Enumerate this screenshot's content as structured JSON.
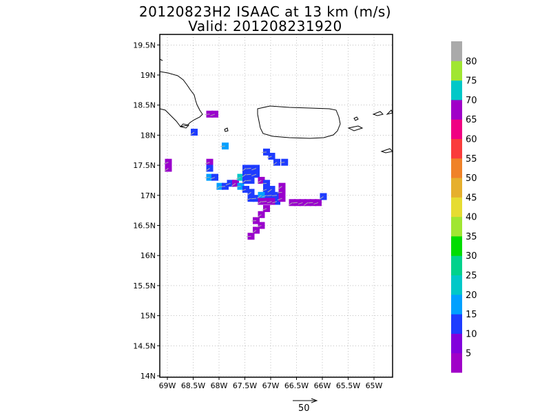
{
  "header": {
    "title_line1": "20120823H2 ISAAC at 13 km (m/s)",
    "title_line2": "Valid: 201208231920"
  },
  "map": {
    "lon_range": [
      -69.2,
      -64.7
    ],
    "lat_range": [
      13.98,
      19.6
    ],
    "lon_ticks": [
      {
        "v": -69.0,
        "label": "69W"
      },
      {
        "v": -68.5,
        "label": "68.5W"
      },
      {
        "v": -68.0,
        "label": "68W"
      },
      {
        "v": -67.5,
        "label": "67.5W"
      },
      {
        "v": -67.0,
        "label": "67W"
      },
      {
        "v": -66.5,
        "label": "66.5W"
      },
      {
        "v": -66.0,
        "label": "66W"
      },
      {
        "v": -65.5,
        "label": "65.5W"
      },
      {
        "v": -65.0,
        "label": "65W"
      }
    ],
    "lat_ticks": [
      {
        "v": 19.5,
        "label": "19.5N"
      },
      {
        "v": 19.0,
        "label": "19N"
      },
      {
        "v": 18.5,
        "label": "18.5N"
      },
      {
        "v": 18.0,
        "label": "18N"
      },
      {
        "v": 17.5,
        "label": "17.5N"
      },
      {
        "v": 17.0,
        "label": "17N"
      },
      {
        "v": 16.5,
        "label": "16.5N"
      },
      {
        "v": 16.0,
        "label": "16N"
      },
      {
        "v": 15.5,
        "label": "15.5N"
      },
      {
        "v": 15.0,
        "label": "15N"
      },
      {
        "v": 14.5,
        "label": "14.5N"
      },
      {
        "v": 14.0,
        "label": "14N"
      }
    ],
    "grid": true,
    "coastline_color": "#000000",
    "cells": [
      {
        "lon": -68.98,
        "lat": 17.55,
        "c": "#9a00cc"
      },
      {
        "lon": -68.98,
        "lat": 17.45,
        "c": "#9a00cc"
      },
      {
        "lon": -68.18,
        "lat": 18.35,
        "c": "#9a00cc"
      },
      {
        "lon": -68.08,
        "lat": 18.35,
        "c": "#9a00cc"
      },
      {
        "lon": -68.48,
        "lat": 18.05,
        "c": "#1e3cff"
      },
      {
        "lon": -67.88,
        "lat": 17.82,
        "c": "#00a0ff"
      },
      {
        "lon": -68.18,
        "lat": 17.55,
        "c": "#9a00cc"
      },
      {
        "lon": -68.18,
        "lat": 17.45,
        "c": "#1e3cff"
      },
      {
        "lon": -68.18,
        "lat": 17.3,
        "c": "#00a0ff"
      },
      {
        "lon": -68.08,
        "lat": 17.3,
        "c": "#1e3cff"
      },
      {
        "lon": -67.98,
        "lat": 17.15,
        "c": "#00a0ff"
      },
      {
        "lon": -67.88,
        "lat": 17.15,
        "c": "#1e3cff"
      },
      {
        "lon": -67.78,
        "lat": 17.2,
        "c": "#1e3cff"
      },
      {
        "lon": -67.68,
        "lat": 17.2,
        "c": "#9a00cc"
      },
      {
        "lon": -67.58,
        "lat": 17.15,
        "c": "#00a0ff"
      },
      {
        "lon": -67.58,
        "lat": 17.3,
        "c": "#00c8c8"
      },
      {
        "lon": -67.48,
        "lat": 17.45,
        "c": "#1e3cff"
      },
      {
        "lon": -67.38,
        "lat": 17.45,
        "c": "#1e3cff"
      },
      {
        "lon": -67.28,
        "lat": 17.45,
        "c": "#1e3cff"
      },
      {
        "lon": -67.48,
        "lat": 17.35,
        "c": "#1e3cff"
      },
      {
        "lon": -67.38,
        "lat": 17.35,
        "c": "#1e3cff"
      },
      {
        "lon": -67.28,
        "lat": 17.35,
        "c": "#1e3cff"
      },
      {
        "lon": -67.48,
        "lat": 17.25,
        "c": "#1e3cff"
      },
      {
        "lon": -67.38,
        "lat": 17.25,
        "c": "#1e3cff"
      },
      {
        "lon": -67.48,
        "lat": 17.1,
        "c": "#1e3cff"
      },
      {
        "lon": -67.38,
        "lat": 17.05,
        "c": "#1e3cff"
      },
      {
        "lon": -67.28,
        "lat": 16.95,
        "c": "#1e3cff"
      },
      {
        "lon": -67.38,
        "lat": 16.95,
        "c": "#1e3cff"
      },
      {
        "lon": -67.18,
        "lat": 17.25,
        "c": "#9a00cc"
      },
      {
        "lon": -67.08,
        "lat": 17.2,
        "c": "#1e3cff"
      },
      {
        "lon": -67.08,
        "lat": 17.1,
        "c": "#1e3cff"
      },
      {
        "lon": -66.98,
        "lat": 17.1,
        "c": "#1e3cff"
      },
      {
        "lon": -66.98,
        "lat": 17.0,
        "c": "#1e3cff"
      },
      {
        "lon": -67.08,
        "lat": 17.0,
        "c": "#1e3cff"
      },
      {
        "lon": -67.18,
        "lat": 17.0,
        "c": "#00a0ff"
      },
      {
        "lon": -66.88,
        "lat": 17.0,
        "c": "#1e3cff"
      },
      {
        "lon": -66.88,
        "lat": 16.9,
        "c": "#1e3cff"
      },
      {
        "lon": -67.18,
        "lat": 16.9,
        "c": "#9a00cc"
      },
      {
        "lon": -67.08,
        "lat": 16.9,
        "c": "#9a00cc"
      },
      {
        "lon": -66.98,
        "lat": 16.9,
        "c": "#9a00cc"
      },
      {
        "lon": -66.78,
        "lat": 17.15,
        "c": "#9a00cc"
      },
      {
        "lon": -66.78,
        "lat": 17.05,
        "c": "#9a00cc"
      },
      {
        "lon": -66.78,
        "lat": 16.95,
        "c": "#9a00cc"
      },
      {
        "lon": -66.58,
        "lat": 16.88,
        "c": "#9a00cc"
      },
      {
        "lon": -66.48,
        "lat": 16.88,
        "c": "#9a00cc"
      },
      {
        "lon": -66.38,
        "lat": 16.88,
        "c": "#9a00cc"
      },
      {
        "lon": -66.28,
        "lat": 16.88,
        "c": "#9a00cc"
      },
      {
        "lon": -66.18,
        "lat": 16.88,
        "c": "#9a00cc"
      },
      {
        "lon": -66.08,
        "lat": 16.88,
        "c": "#9a00cc"
      },
      {
        "lon": -65.98,
        "lat": 16.98,
        "c": "#1e3cff"
      },
      {
        "lon": -67.08,
        "lat": 17.72,
        "c": "#1e3cff"
      },
      {
        "lon": -66.98,
        "lat": 17.65,
        "c": "#1e3cff"
      },
      {
        "lon": -66.88,
        "lat": 17.55,
        "c": "#1e3cff"
      },
      {
        "lon": -66.73,
        "lat": 17.55,
        "c": "#1e3cff"
      },
      {
        "lon": -67.08,
        "lat": 16.78,
        "c": "#9a00cc"
      },
      {
        "lon": -67.18,
        "lat": 16.68,
        "c": "#9a00cc"
      },
      {
        "lon": -67.28,
        "lat": 16.58,
        "c": "#9a00cc"
      },
      {
        "lon": -67.18,
        "lat": 16.5,
        "c": "#9a00cc"
      },
      {
        "lon": -67.28,
        "lat": 16.42,
        "c": "#9a00cc"
      },
      {
        "lon": -67.38,
        "lat": 16.32,
        "c": "#9a00cc"
      }
    ]
  },
  "colorbar": {
    "colors": [
      "#a000c8",
      "#8200dc",
      "#1e3cff",
      "#00a0ff",
      "#00c8c8",
      "#00d28c",
      "#00dc00",
      "#a0e632",
      "#e6dc32",
      "#e6af2d",
      "#f08228",
      "#fa3c3c",
      "#f00082",
      "#a000c8",
      "#00c8c8",
      "#a0e632",
      "#aaaaaa"
    ],
    "labels": [
      "5",
      "10",
      "15",
      "20",
      "25",
      "30",
      "35",
      "40",
      "45",
      "50",
      "55",
      "60",
      "65",
      "70",
      "75",
      "80"
    ]
  },
  "reference_vector": {
    "label": "50"
  }
}
